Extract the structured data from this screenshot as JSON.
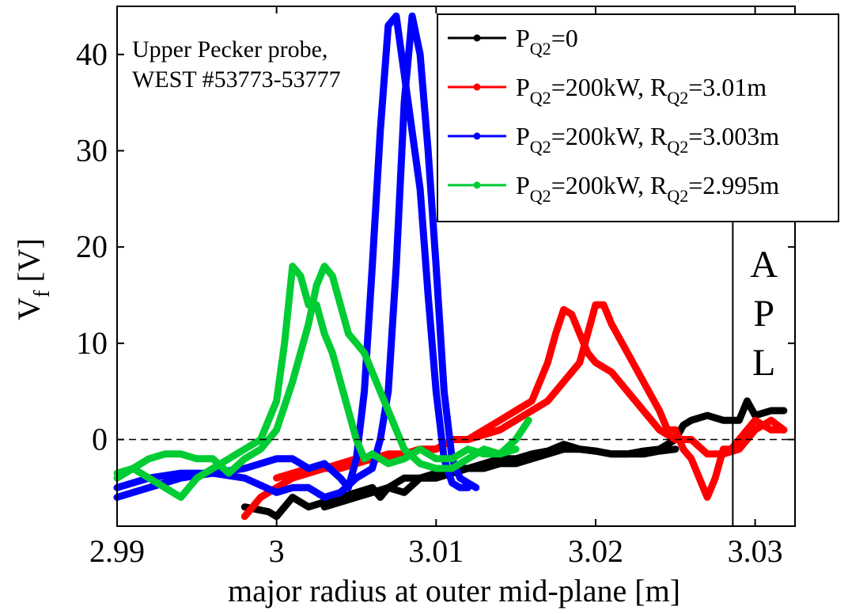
{
  "chart_data": {
    "type": "line",
    "xlabel": "major radius at outer mid-plane [m]",
    "ylabel": "V",
    "ylabel_sub": "f",
    "ylabel_unit": " [V]",
    "xlim": [
      2.99,
      3.0325
    ],
    "ylim": [
      -9,
      45
    ],
    "x_ticks": [
      2.99,
      3.0,
      3.01,
      3.02,
      3.03
    ],
    "x_tick_labels": [
      "2.99",
      "3",
      "3.01",
      "3.02",
      "3.03"
    ],
    "y_ticks": [
      0,
      10,
      20,
      30,
      40
    ],
    "y_tick_labels": [
      "0",
      "10",
      "20",
      "30",
      "40"
    ],
    "annotation": [
      "Upper Pecker probe,",
      "WEST #53773-53777"
    ],
    "apl_letters": [
      "A",
      "P",
      "L"
    ],
    "apl_region": [
      3.0286,
      3.0325
    ],
    "zero_line": 0,
    "grid": false,
    "legend_position": "top-right",
    "series": [
      {
        "legend": {
          "base": "P",
          "sub1": "Q2",
          "text1": "=0"
        },
        "color": "#000000",
        "x": [
          2.998,
          2.9995,
          3.0,
          3.001,
          3.002,
          3.003,
          3.004,
          3.005,
          3.006,
          3.0065,
          3.007,
          3.008,
          3.009,
          3.01,
          3.011,
          3.012,
          3.013,
          3.014,
          3.015,
          3.016,
          3.017,
          3.018,
          3.019,
          3.02,
          3.021,
          3.022,
          3.023,
          3.024,
          3.025,
          3.0255,
          3.026,
          3.027,
          3.028,
          3.029,
          3.0295,
          3.03,
          3.031,
          3.0318
        ],
        "y": [
          -7,
          -7.5,
          -8,
          -6,
          -7,
          -6.5,
          -6,
          -5.5,
          -5,
          -6,
          -5,
          -5.5,
          -4,
          -4,
          -3.5,
          -3,
          -3,
          -2.5,
          -2.5,
          -2,
          -1.5,
          -1,
          -1,
          -1.2,
          -1.5,
          -1.5,
          -1.2,
          -1,
          0,
          1.5,
          2,
          2.5,
          2,
          2,
          4,
          2.5,
          3,
          3
        ],
        "x2": [
          3.003,
          3.004,
          3.005,
          3.006,
          3.007,
          3.008,
          3.009,
          3.01,
          3.011,
          3.012,
          3.013,
          3.014,
          3.015,
          3.016,
          3.017,
          3.018,
          3.019,
          3.02,
          3.021,
          3.022,
          3.023,
          3.024,
          3.025
        ],
        "y2": [
          -7,
          -6.5,
          -6,
          -5.5,
          -5,
          -4,
          -4,
          -3.5,
          -3,
          -3,
          -2.5,
          -2,
          -2,
          -1.5,
          -1.2,
          -0.5,
          -1,
          -1.2,
          -1.5,
          -1.5,
          -1.5,
          -1.2,
          -1
        ]
      },
      {
        "legend": {
          "base": "P",
          "sub1": "Q2",
          "text1": "=200kW, R",
          "sub2": "Q2",
          "text2": "=3.01m"
        },
        "color": "#ff0000",
        "x": [
          2.998,
          2.999,
          3.0,
          3.001,
          3.002,
          3.003,
          3.004,
          3.005,
          3.006,
          3.007,
          3.008,
          3.009,
          3.01,
          3.011,
          3.012,
          3.013,
          3.014,
          3.015,
          3.016,
          3.0165,
          3.017,
          3.0175,
          3.018,
          3.0185,
          3.019,
          3.0195,
          3.02,
          3.021,
          3.022,
          3.023,
          3.024,
          3.025,
          3.026,
          3.027,
          3.028,
          3.029,
          3.0295,
          3.03,
          3.031,
          3.0318
        ],
        "y": [
          -8,
          -6,
          -5,
          -4,
          -3.5,
          -3,
          -3,
          -2.5,
          -2,
          -2,
          -1.5,
          -1,
          -1,
          0,
          0,
          1,
          2,
          3,
          4,
          6,
          8,
          11,
          13.5,
          13,
          11,
          9,
          8,
          7,
          5,
          3,
          1,
          0,
          0,
          -1.5,
          -1.5,
          -1,
          0,
          1,
          2,
          1
        ],
        "x2": [
          3.0,
          3.001,
          3.002,
          3.003,
          3.004,
          3.005,
          3.006,
          3.007,
          3.008,
          3.009,
          3.01,
          3.011,
          3.012,
          3.013,
          3.014,
          3.015,
          3.016,
          3.017,
          3.018,
          3.019,
          3.0195,
          3.02,
          3.0205,
          3.021,
          3.022,
          3.023,
          3.024,
          3.0245,
          3.025,
          3.0255,
          3.026,
          3.0265,
          3.027,
          3.0275,
          3.028,
          3.0285,
          3.029,
          3.0295,
          3.03,
          3.031,
          3.0318
        ],
        "y2": [
          -4,
          -3.5,
          -3,
          -3,
          -2.5,
          -2,
          -2,
          -1.5,
          -1.5,
          -1,
          -1,
          0,
          0,
          0.5,
          1,
          2,
          3,
          4,
          6,
          8,
          11,
          14,
          14,
          12,
          9,
          6,
          3,
          1,
          1,
          -1,
          -2,
          -4,
          -6,
          -4,
          -1,
          -1,
          0,
          1,
          2,
          1,
          1
        ]
      },
      {
        "legend": {
          "base": "P",
          "sub1": "Q2",
          "text1": "=200kW, R",
          "sub2": "Q2",
          "text2": "=3.003m"
        },
        "color": "#0000ff",
        "x": [
          2.99,
          2.992,
          2.994,
          2.996,
          2.998,
          2.999,
          3.0,
          3.001,
          3.002,
          3.003,
          3.004,
          3.0045,
          3.005,
          3.0055,
          3.006,
          3.0065,
          3.007,
          3.0075,
          3.008,
          3.0085,
          3.009,
          3.0095,
          3.01,
          3.0105,
          3.011,
          3.0115,
          3.012
        ],
        "y": [
          -6,
          -5,
          -4,
          -3.5,
          -3,
          -2.5,
          -2,
          -2,
          -3,
          -2.5,
          -4,
          -5,
          -2,
          5,
          18,
          32,
          43,
          44,
          38,
          32,
          26,
          15,
          5,
          -2,
          -4.5,
          -5,
          -5
        ],
        "x2": [
          2.99,
          2.992,
          2.994,
          2.996,
          2.998,
          3.0,
          3.001,
          3.002,
          3.003,
          3.004,
          3.005,
          3.006,
          3.0065,
          3.007,
          3.0075,
          3.008,
          3.0085,
          3.009,
          3.0095,
          3.01,
          3.0105,
          3.011,
          3.0115,
          3.012,
          3.0125
        ],
        "y2": [
          -5,
          -4,
          -3.5,
          -3.5,
          -4,
          -5.5,
          -5,
          -5,
          -6,
          -5.5,
          -4,
          -3,
          0,
          5,
          18,
          35,
          44,
          40,
          30,
          18,
          5,
          -2,
          -4,
          -4.5,
          -5
        ]
      },
      {
        "legend": {
          "base": "P",
          "sub1": "Q2",
          "text1": "=200kW, R",
          "sub2": "Q2",
          "text2": "=2.995m"
        },
        "color": "#00cc33",
        "x": [
          2.99,
          2.991,
          2.992,
          2.993,
          2.994,
          2.995,
          2.996,
          2.997,
          2.998,
          2.999,
          3.0,
          3.0005,
          3.001,
          3.0015,
          3.002,
          3.0025,
          3.003,
          3.0035,
          3.004,
          3.0045,
          3.005,
          3.0055,
          3.006,
          3.0065,
          3.007,
          3.008,
          3.009,
          3.01,
          3.011,
          3.012,
          3.013,
          3.014,
          3.015
        ],
        "y": [
          -3.5,
          -3,
          -4,
          -5,
          -6,
          -4,
          -3,
          -2,
          -1,
          0,
          4,
          10,
          18,
          17,
          14,
          14,
          11,
          9,
          6,
          3,
          0,
          -2,
          -1.5,
          -2,
          -2.5,
          -2,
          -1,
          -2,
          -2,
          -1,
          -1.5,
          -1.5,
          -1
        ],
        "x2": [
          2.99,
          2.991,
          2.992,
          2.993,
          2.994,
          2.995,
          2.996,
          2.997,
          2.998,
          2.999,
          3.0,
          3.001,
          3.002,
          3.0025,
          3.003,
          3.0035,
          3.004,
          3.0045,
          3.005,
          3.0055,
          3.006,
          3.0065,
          3.007,
          3.0075,
          3.008,
          3.009,
          3.01,
          3.011,
          3.012,
          3.013,
          3.014,
          3.015,
          3.0158
        ],
        "y2": [
          -4,
          -3,
          -2,
          -1.5,
          -1.5,
          -2,
          -2,
          -3.5,
          -2,
          -1,
          1,
          6,
          12,
          16,
          18,
          17,
          14,
          11,
          10,
          9,
          7,
          5,
          3,
          1,
          -1,
          -2.5,
          -3,
          -3,
          -2,
          -1,
          -1.5,
          0,
          2
        ]
      }
    ]
  }
}
